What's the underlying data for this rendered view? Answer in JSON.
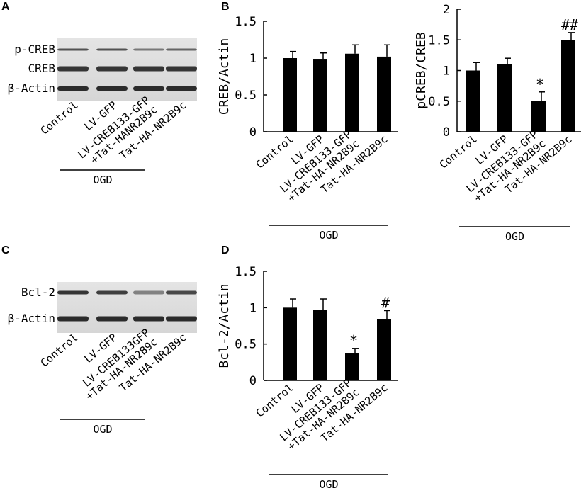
{
  "chart_data": [
    {
      "type": "bar",
      "panel": "B",
      "ylabel": "CREB/Actin",
      "categories": [
        "Control",
        "LV-GFP",
        [
          "LV-CREB133-GFP",
          "+Tat-HA-NR2B9c"
        ],
        "Tat-HA-NR2B9c"
      ],
      "values": [
        1.0,
        0.99,
        1.06,
        1.02
      ],
      "errors": [
        0.09,
        0.08,
        0.12,
        0.16
      ],
      "value_annotations": [
        null,
        null,
        null,
        null
      ],
      "color": "#000000",
      "ylim": [
        0,
        1.5
      ],
      "yticks": [
        0,
        0.5,
        1,
        1.5
      ],
      "group_label": "OGD"
    },
    {
      "type": "bar",
      "ylabel": "pCREB/CREB",
      "categories": [
        "Control",
        "LV-GFP",
        [
          "LV-CREB133-GFP",
          "+Tat-HA-NR2B9c"
        ],
        "Tat-HA-NR2B9c"
      ],
      "values": [
        1.0,
        1.1,
        0.5,
        1.5
      ],
      "errors": [
        0.13,
        0.1,
        0.15,
        0.12
      ],
      "value_annotations": [
        null,
        null,
        "*",
        "##"
      ],
      "color": "#000000",
      "ylim": [
        0,
        2
      ],
      "yticks": [
        0,
        0.5,
        1,
        1.5,
        2
      ],
      "group_label": "OGD"
    },
    {
      "type": "bar",
      "panel": "D",
      "ylabel": "Bcl-2/Actin",
      "categories": [
        "Control",
        "LV-GFP",
        [
          "LV-CREB133-GFP",
          "+Tat-HA-NR2B9c"
        ],
        "Tat-HA-NR2B9c"
      ],
      "values": [
        1.0,
        0.97,
        0.37,
        0.84
      ],
      "errors": [
        0.12,
        0.15,
        0.07,
        0.12
      ],
      "value_annotations": [
        null,
        null,
        "*",
        "#"
      ],
      "color": "#000000",
      "ylim": [
        0,
        1.5
      ],
      "yticks": [
        0,
        0.5,
        1,
        1.5
      ],
      "group_label": "OGD"
    }
  ],
  "blots": [
    {
      "panel": "A",
      "rows": [
        "p-CREB",
        "CREB",
        "β-Actin"
      ],
      "lanes": [
        "Control",
        "LV-GFP",
        [
          "LV-CREB133-GFP",
          "+Tat-HANR2B9c"
        ],
        "Tat-HA-NR2B9c"
      ],
      "group_label": "OGD"
    },
    {
      "panel": "C",
      "rows": [
        "Bcl-2",
        "β-Actin"
      ],
      "lanes": [
        "Control",
        "LV-GFP",
        [
          "LV-CREB133GFP",
          "+Tat-HA-NR2B9c"
        ],
        "Tat-HA-NR2B9c"
      ],
      "group_label": "OGD"
    }
  ]
}
